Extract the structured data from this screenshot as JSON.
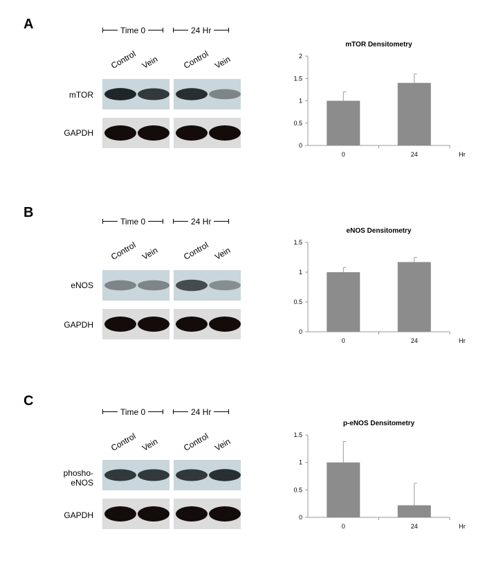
{
  "timepoints": [
    "Time 0",
    "24 Hr"
  ],
  "lanes": [
    "Control",
    "Vein",
    "Control",
    "Vein"
  ],
  "panels": [
    {
      "letter": "A",
      "blot_rows": [
        {
          "label": "mTOR",
          "intensity": [
            0.95,
            0.85,
            0.9,
            0.45
          ]
        },
        {
          "label": "GAPDH",
          "intensity": [
            1.0,
            1.0,
            1.0,
            1.0
          ]
        }
      ]
    },
    {
      "letter": "B",
      "blot_rows": [
        {
          "label": "eNOS",
          "intensity": [
            0.45,
            0.45,
            0.75,
            0.4
          ]
        },
        {
          "label": "GAPDH",
          "intensity": [
            1.0,
            1.0,
            1.0,
            1.0
          ]
        }
      ]
    },
    {
      "letter": "C",
      "blot_rows": [
        {
          "label": "phosho-\neNOS",
          "intensity": [
            0.85,
            0.85,
            0.85,
            0.9
          ]
        },
        {
          "label": "GAPDH",
          "intensity": [
            1.0,
            1.0,
            1.0,
            1.0
          ]
        }
      ]
    }
  ],
  "chart_data": [
    {
      "type": "bar",
      "title": "mTOR Densitometry",
      "categories": [
        "0",
        "24"
      ],
      "values": [
        1.0,
        1.4
      ],
      "errors": [
        0.2,
        0.2
      ],
      "xlabel": "Hr",
      "ylabel": "",
      "ylim": [
        0,
        2
      ],
      "yticks": [
        0,
        0.5,
        1,
        1.5,
        2
      ],
      "grid": false,
      "bar_color": "#8c8c8c"
    },
    {
      "type": "bar",
      "title": "eNOS Densitometry",
      "categories": [
        "0",
        "24"
      ],
      "values": [
        1.0,
        1.17
      ],
      "errors": [
        0.08,
        0.08
      ],
      "xlabel": "Hr",
      "ylabel": "",
      "ylim": [
        0,
        1.5
      ],
      "yticks": [
        0,
        0.5,
        1,
        1.5
      ],
      "grid": false,
      "bar_color": "#8c8c8c"
    },
    {
      "type": "bar",
      "title": "p-eNOS Densitometry",
      "categories": [
        "0",
        "24"
      ],
      "values": [
        1.0,
        0.22
      ],
      "errors": [
        0.38,
        0.4
      ],
      "xlabel": "Hr",
      "ylabel": "",
      "ylim": [
        0,
        1.5
      ],
      "yticks": [
        0,
        0.5,
        1,
        1.5
      ],
      "grid": false,
      "bar_color": "#8c8c8c"
    }
  ]
}
